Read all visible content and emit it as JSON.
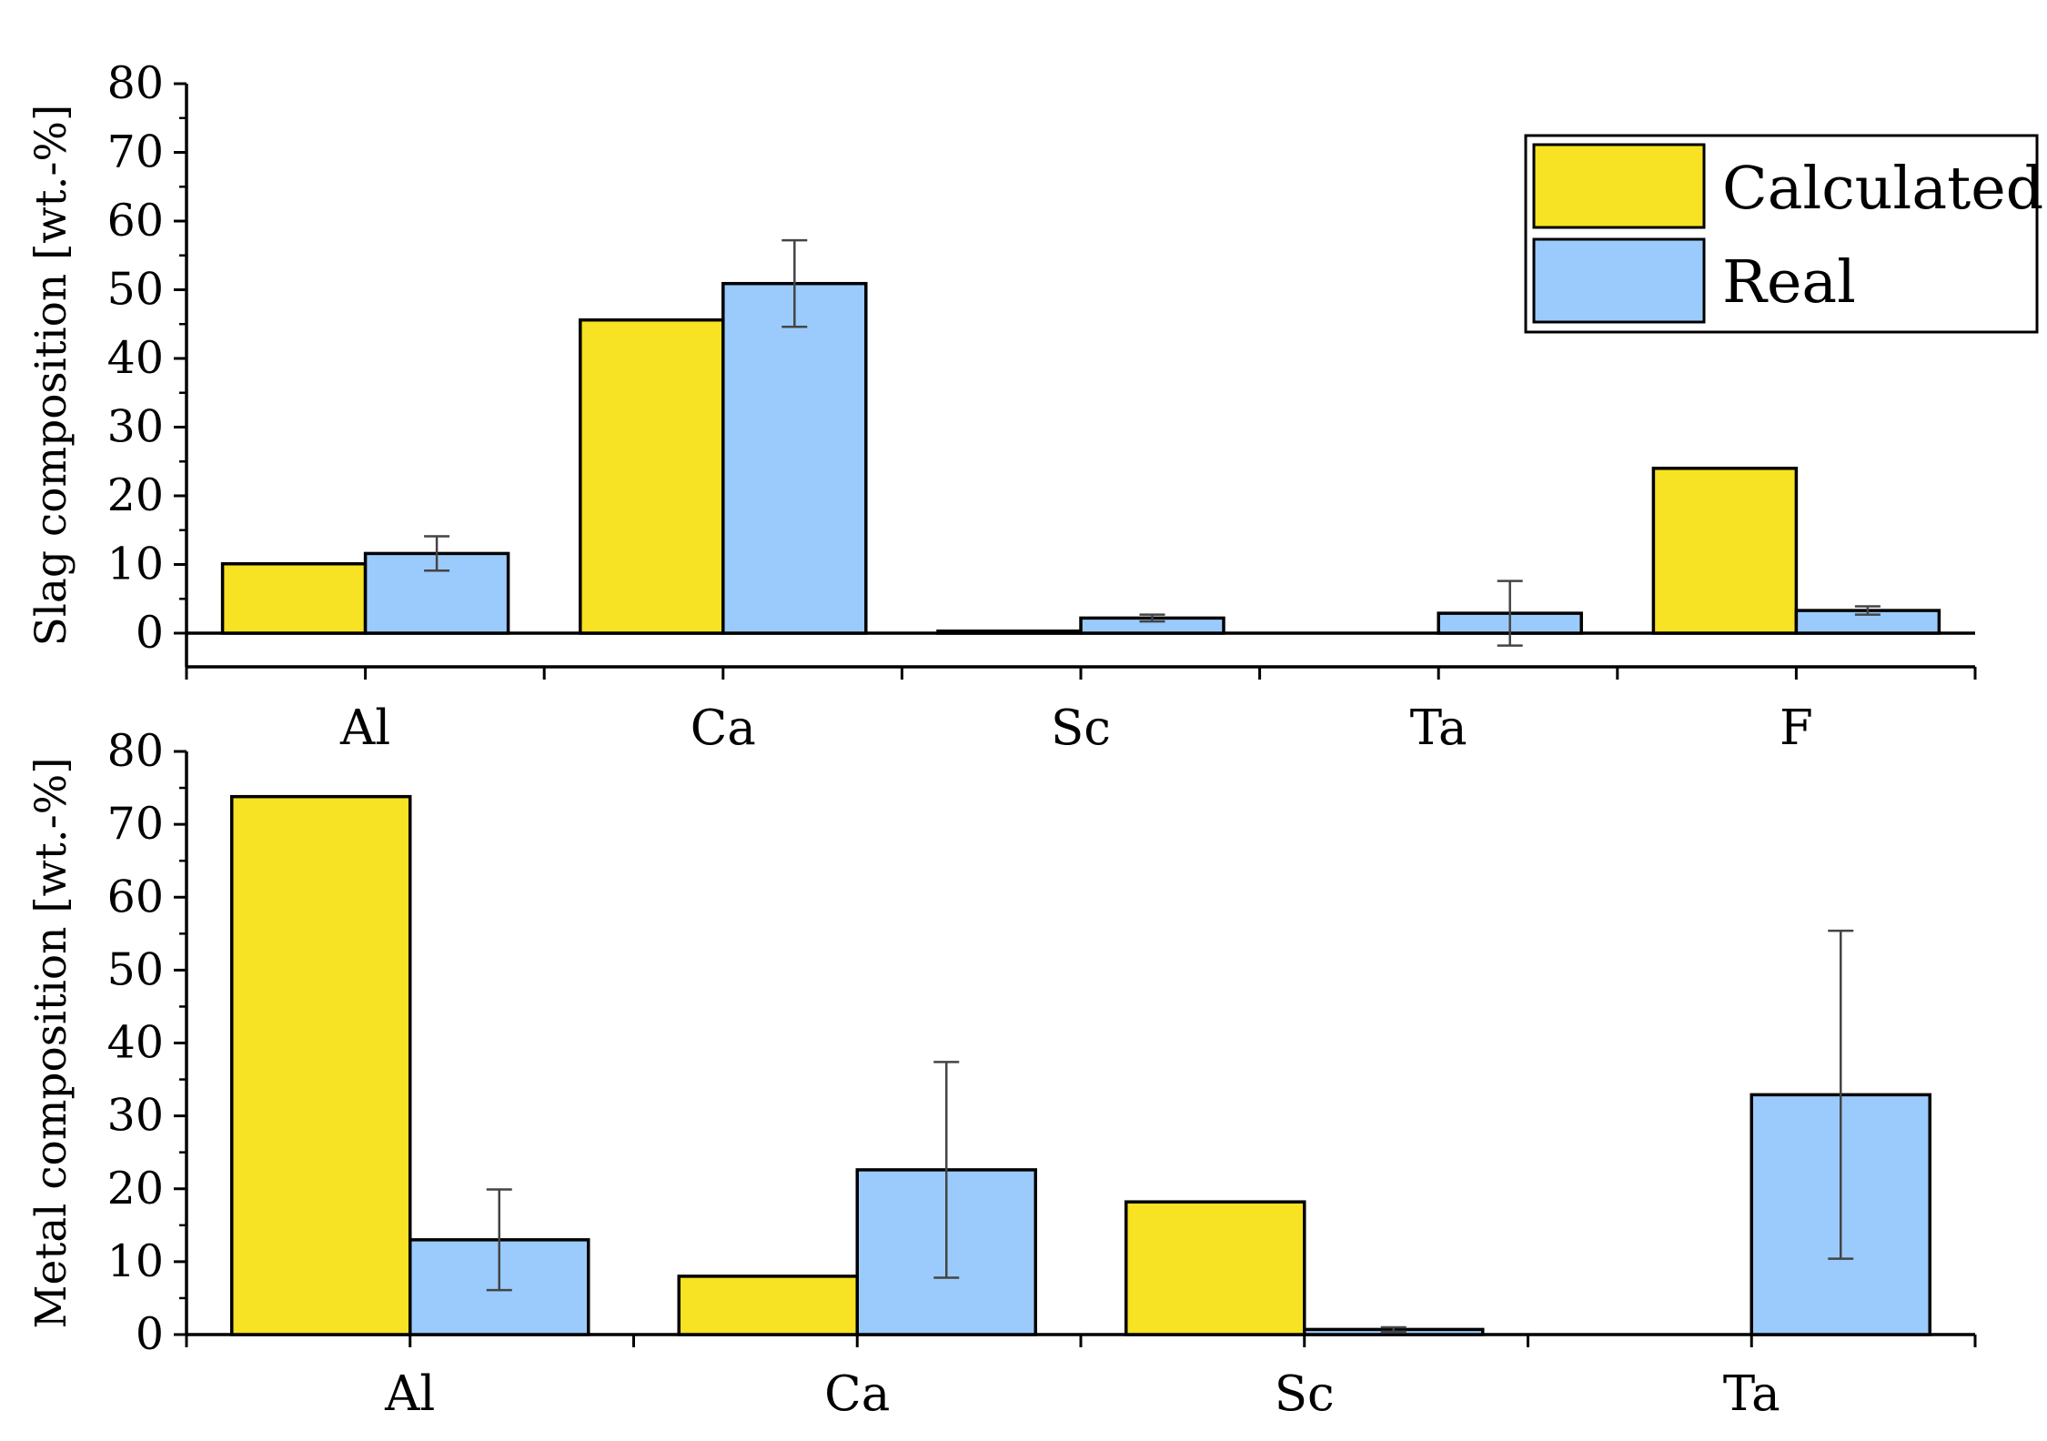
{
  "colors": {
    "calculated": "#f7e223",
    "real": "#9bcbfc",
    "outline": "#000000",
    "errorbar": "#444444"
  },
  "legend": {
    "placement": "top-right",
    "items": [
      "Calculated",
      "Real"
    ]
  },
  "chart_data": [
    {
      "type": "bar",
      "ylabel": "Slag composition [wt.-%]",
      "ylim": [
        -5,
        80
      ],
      "yticks": [
        0,
        10,
        20,
        30,
        40,
        50,
        60,
        70,
        80
      ],
      "categories": [
        "Al",
        "Ca",
        "Sc",
        "Ta",
        "F"
      ],
      "series": [
        {
          "name": "Calculated",
          "values": [
            10.1,
            45.6,
            0.3,
            0,
            24.0
          ]
        },
        {
          "name": "Real",
          "values": [
            11.6,
            50.9,
            2.2,
            2.9,
            3.3
          ],
          "error": [
            2.5,
            6.3,
            0.5,
            4.7,
            0.6
          ]
        }
      ],
      "grid": false
    },
    {
      "type": "bar",
      "ylabel": "Metal composition [wt.-%]",
      "ylim": [
        0,
        80
      ],
      "yticks": [
        0,
        10,
        20,
        30,
        40,
        50,
        60,
        70,
        80
      ],
      "categories": [
        "Al",
        "Ca",
        "Sc",
        "Ta"
      ],
      "series": [
        {
          "name": "Calculated",
          "values": [
            73.8,
            8.0,
            18.2,
            0
          ]
        },
        {
          "name": "Real",
          "values": [
            13.0,
            22.6,
            0.7,
            32.9
          ],
          "error": [
            6.9,
            14.8,
            0.3,
            22.5
          ]
        }
      ],
      "grid": false
    }
  ]
}
